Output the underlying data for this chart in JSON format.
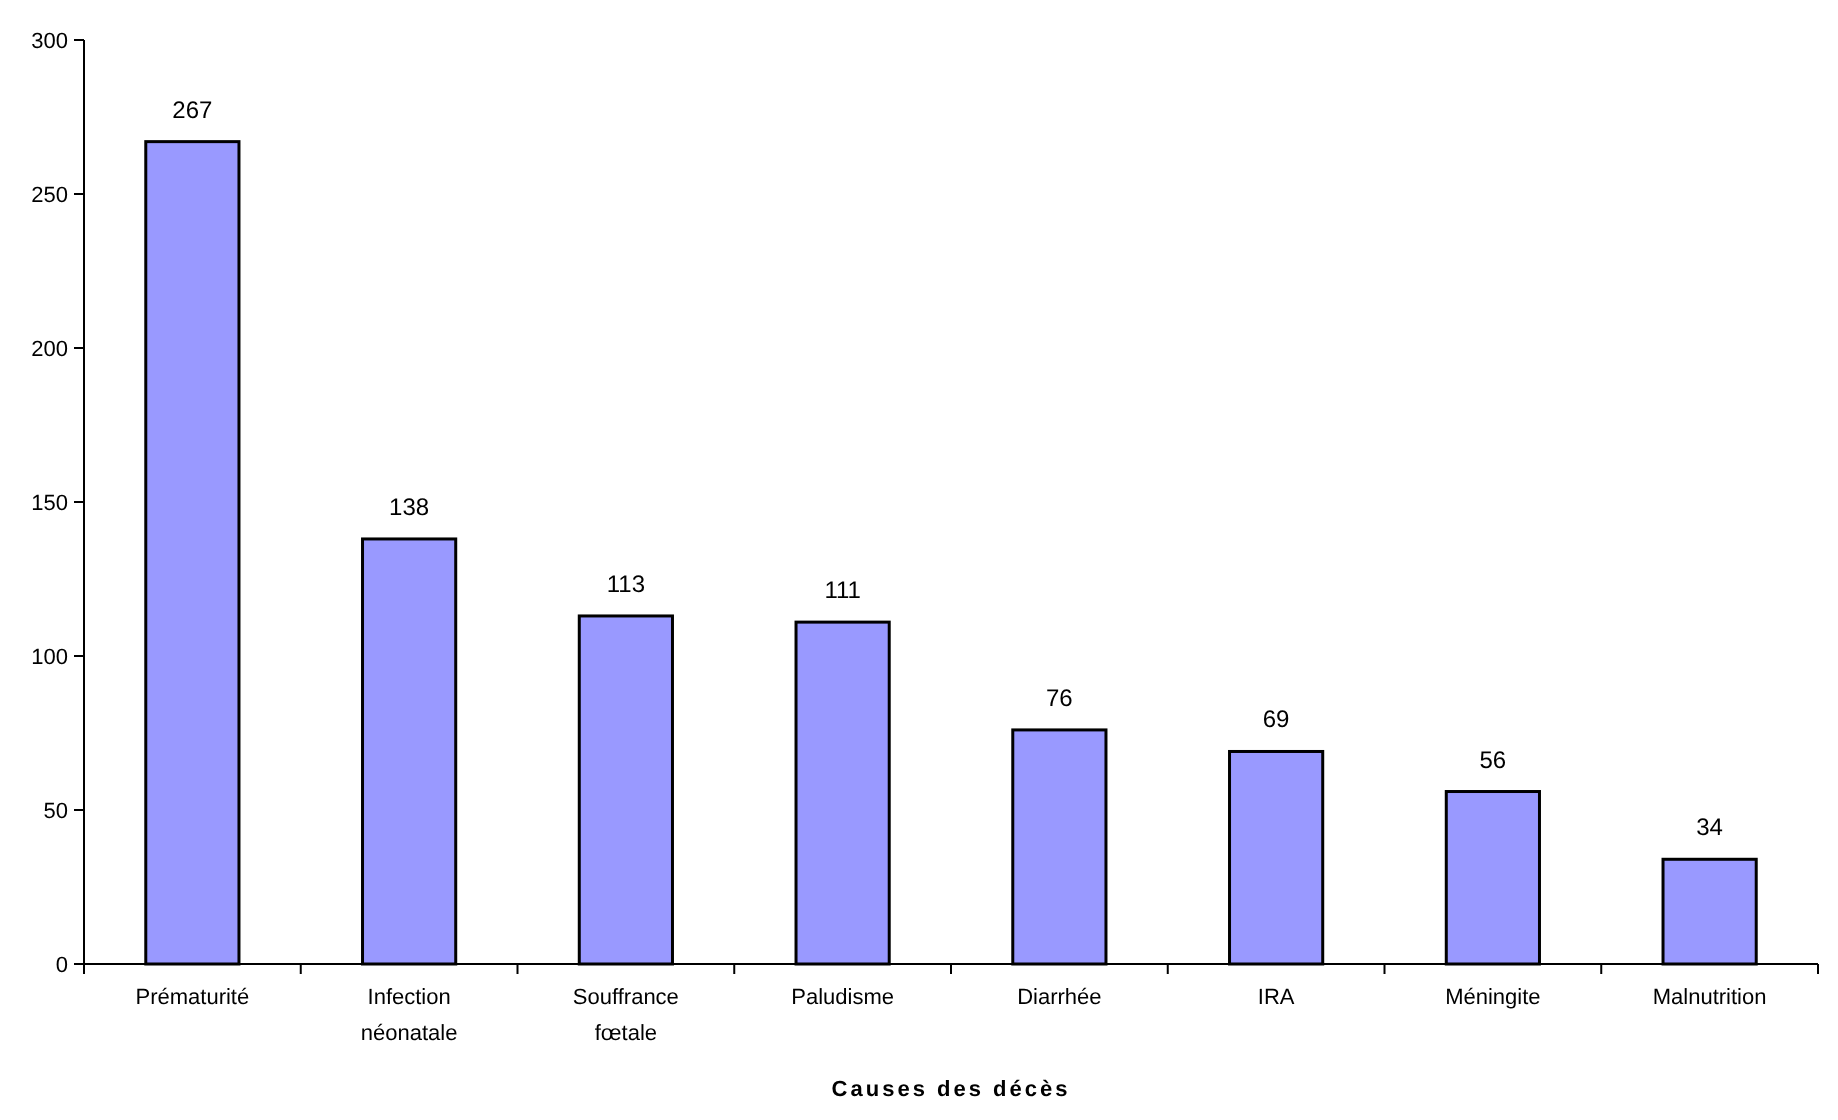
{
  "chart_data": {
    "type": "bar",
    "xlabel": "Causes des décès",
    "categories": [
      "Prématurité",
      "Infection néonatale",
      "Souffrance fœtale",
      "Paludisme",
      "Diarrhée",
      "IRA",
      "Méningite",
      "Malnutrition"
    ],
    "values": [
      267,
      138,
      113,
      111,
      76,
      69,
      56,
      34
    ],
    "color": "#9999ff",
    "ylim": [
      0,
      300
    ],
    "yticks": [
      0,
      50,
      100,
      150,
      200,
      250,
      300
    ],
    "data_labels": true
  }
}
